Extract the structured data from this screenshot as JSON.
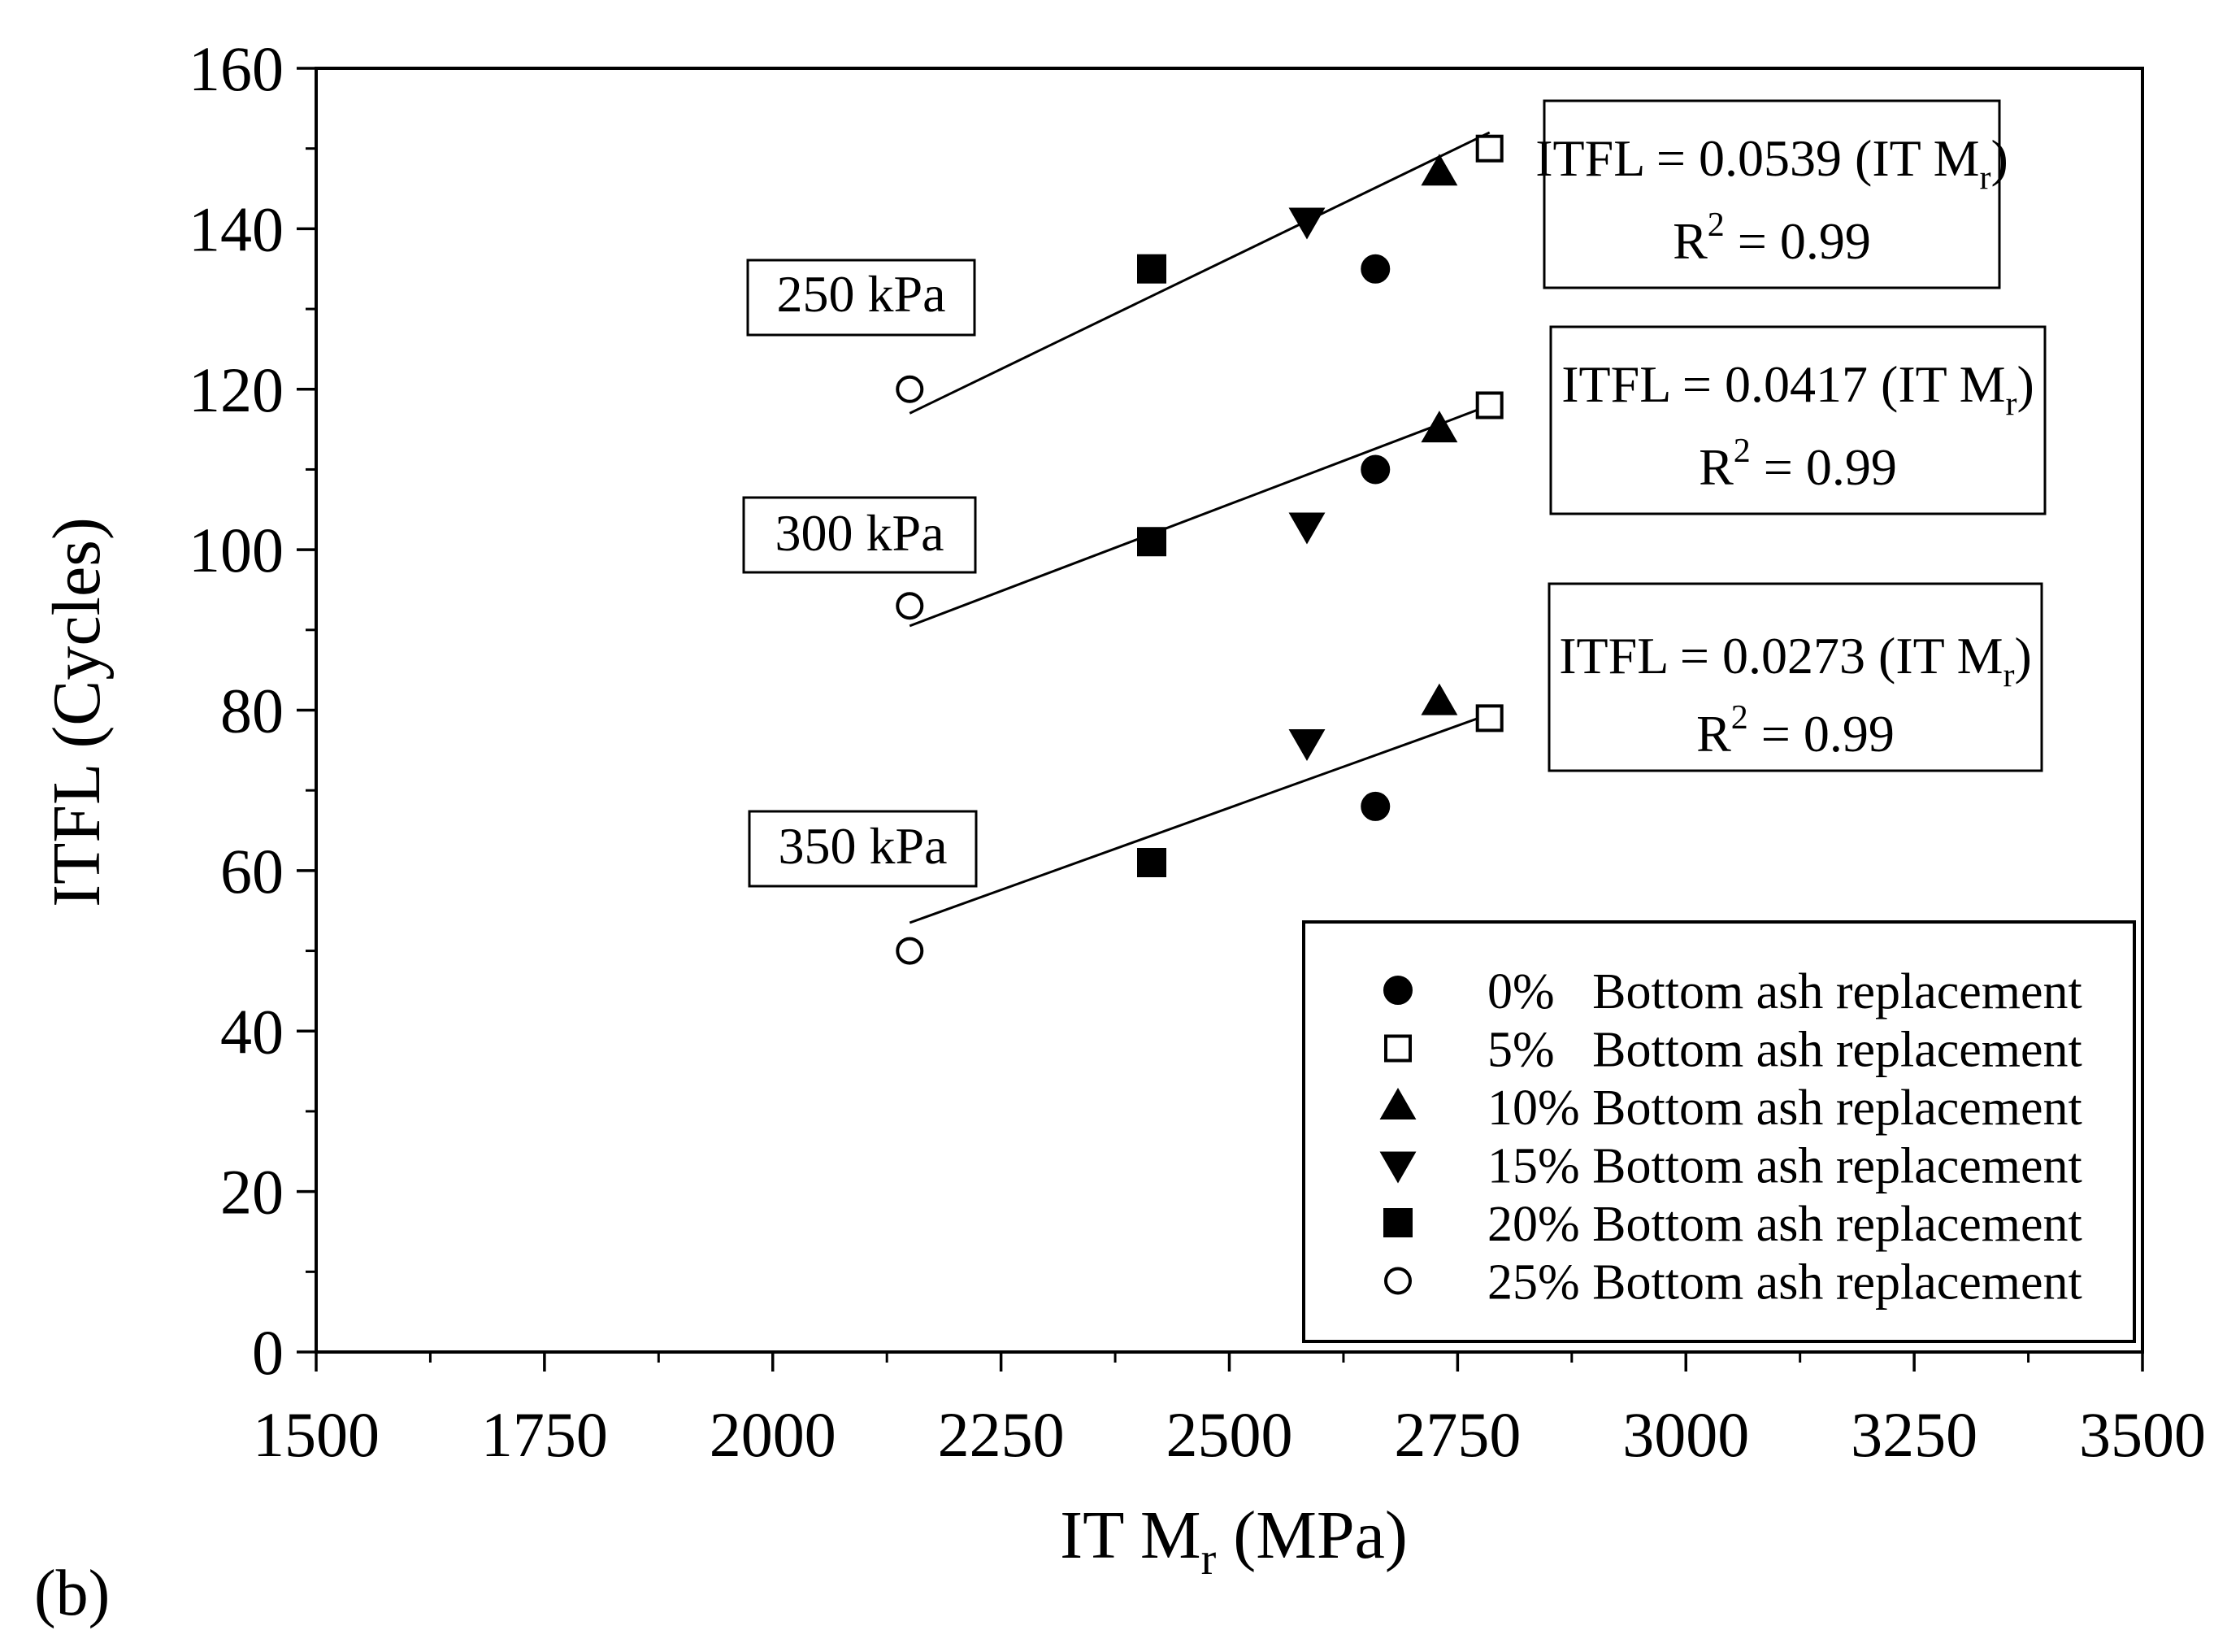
{
  "panel_label": "(b)",
  "chart_data": {
    "type": "scatter",
    "title": "",
    "xlabel": "IT M",
    "xlabel_sub": "r",
    "xlabel_unit": " (MPa)",
    "ylabel": "ITFL (Cycles)",
    "xlim": [
      1500,
      3500
    ],
    "ylim": [
      0,
      160
    ],
    "x_ticks": [
      "1500",
      "1750",
      "2000",
      "2250",
      "2500",
      "2750",
      "3000",
      "3250",
      "3500"
    ],
    "y_ticks": [
      "0",
      "20",
      "40",
      "60",
      "80",
      "100",
      "120",
      "140",
      "160"
    ],
    "x_minor_step": 125,
    "y_minor_step": 10,
    "grid": false,
    "legend_position": "bottom-right",
    "series": [
      {
        "name": "0%   Bottom ash replacement",
        "marker": "circle-filled",
        "x": 2660,
        "values": {
          "250 kPa": 135,
          "300 kPa": 110,
          "350 kPa": 68
        }
      },
      {
        "name": "5%   Bottom ash replacement",
        "marker": "square-open",
        "x": 2785,
        "values": {
          "250 kPa": 150,
          "300 kPa": 118,
          "350 kPa": 79
        }
      },
      {
        "name": "10% Bottom ash replacement",
        "marker": "triangle-up-filled",
        "x": 2730,
        "values": {
          "250 kPa": 147,
          "300 kPa": 115,
          "350 kPa": 81
        }
      },
      {
        "name": "15% Bottom ash replacement",
        "marker": "triangle-down-filled",
        "x": 2585,
        "values": {
          "250 kPa": 141,
          "300 kPa": 103,
          "350 kPa": 76
        }
      },
      {
        "name": "20% Bottom ash replacement",
        "marker": "square-filled",
        "x": 2415,
        "values": {
          "250 kPa": 135,
          "300 kPa": 101,
          "350 kPa": 61
        }
      },
      {
        "name": "25% Bottom ash replacement",
        "marker": "circle-open",
        "x": 2150,
        "values": {
          "250 kPa": 120,
          "300 kPa": 93,
          "350 kPa": 50
        }
      }
    ],
    "groups": [
      {
        "label": "250 kPa",
        "eq_main": "ITFL = 0.0539 (IT M",
        "eq_sub": "r",
        "eq_close": ")",
        "r2_main": "R",
        "r2_sup": "2",
        "r2_rest": " = 0.99",
        "fit_line": {
          "x": [
            2150,
            2785
          ],
          "y": [
            117,
            152
          ]
        }
      },
      {
        "label": "300 kPa",
        "eq_main": "ITFL = 0.0417 (IT M",
        "eq_sub": "r",
        "eq_close": ")",
        "r2_main": "R",
        "r2_sup": "2",
        "r2_rest": " = 0.99",
        "fit_line": {
          "x": [
            2150,
            2785
          ],
          "y": [
            90.5,
            118
          ]
        }
      },
      {
        "label": "350 kPa",
        "eq_main": "ITFL = 0.0273 (IT M",
        "eq_sub": "r",
        "eq_close": ")",
        "r2_main": "R",
        "r2_sup": "2",
        "r2_rest": " = 0.99",
        "fit_line": {
          "x": [
            2150,
            2785
          ],
          "y": [
            53.5,
            79.5
          ]
        }
      }
    ]
  }
}
